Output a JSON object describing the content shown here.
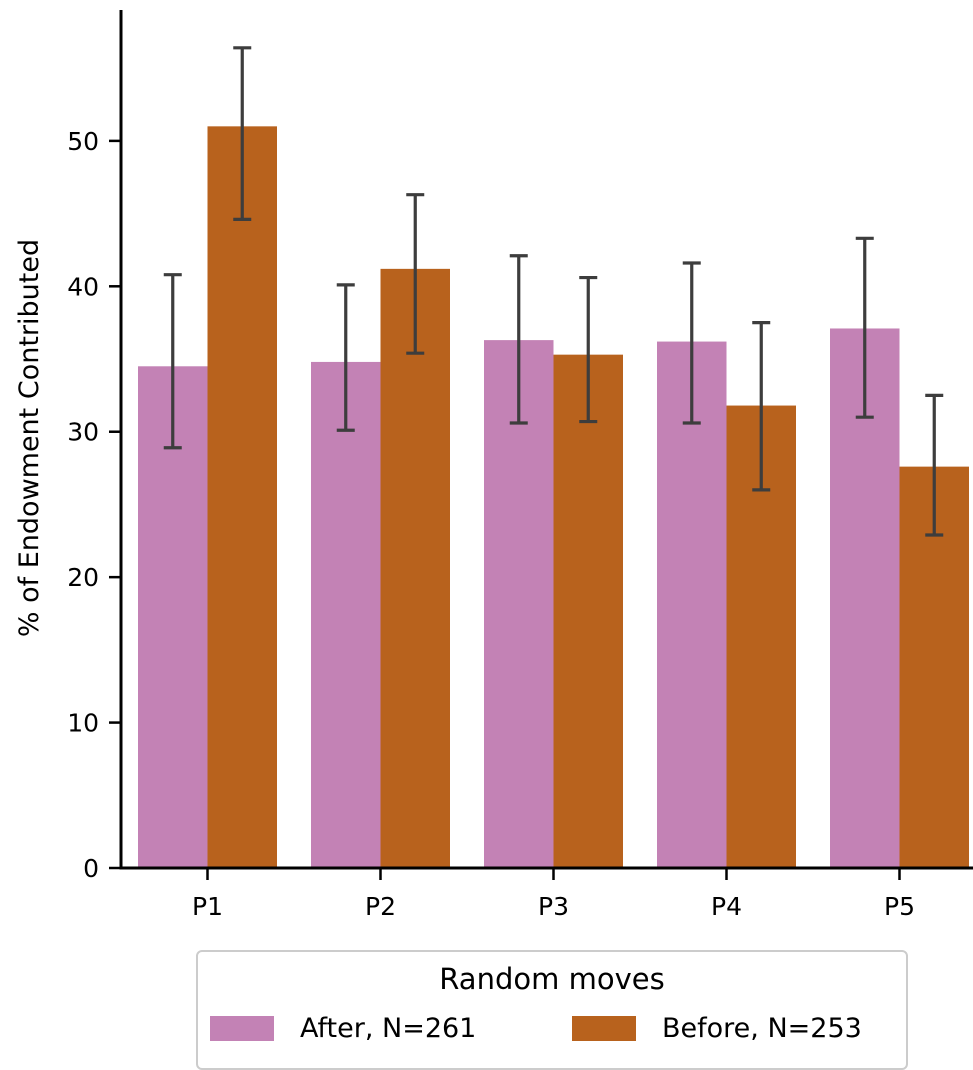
{
  "chart_data": {
    "type": "bar",
    "categories": [
      "P1",
      "P2",
      "P3",
      "P4",
      "P5"
    ],
    "ylabel": "% of Endowment Contributed",
    "xlabel": "",
    "ylim": [
      0,
      59
    ],
    "yticks": [
      0,
      10,
      20,
      30,
      40,
      50
    ],
    "legend": {
      "title": "Random moves",
      "placement": "bottom-center"
    },
    "series": [
      {
        "name": "After, N=261",
        "color": "#c382b5",
        "values": [
          34.5,
          34.8,
          36.3,
          36.2,
          37.1
        ],
        "error_low": [
          28.9,
          30.1,
          30.6,
          30.6,
          31.0
        ],
        "error_high": [
          40.8,
          40.1,
          42.1,
          41.6,
          43.3
        ]
      },
      {
        "name": "Before, N=253",
        "color": "#b8621d",
        "values": [
          51.0,
          41.2,
          35.3,
          31.8,
          27.6
        ],
        "error_low": [
          44.6,
          35.4,
          30.7,
          26.0,
          22.9
        ],
        "error_high": [
          56.4,
          46.3,
          40.6,
          37.5,
          32.5
        ]
      }
    ],
    "error_bar_color": "#3d3d3d",
    "grid": false
  }
}
